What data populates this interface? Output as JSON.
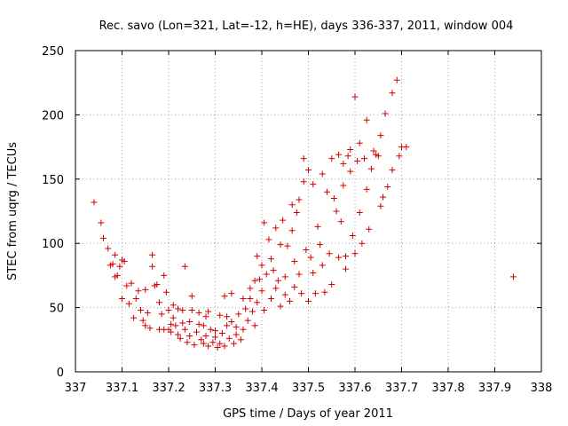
{
  "chart_data": {
    "type": "scatter",
    "title": "Rec. savo (Lon=321, Lat=-12, h=HE), days 336-337, 2011, window 004",
    "xlabel": "GPS time / Days of year 2011",
    "ylabel": "STEC from uqrg / TECUs",
    "xlim": [
      337,
      338
    ],
    "ylim": [
      0,
      250
    ],
    "grid": true,
    "marker": "+",
    "color": "#d00000",
    "x_ticks": [
      "337",
      "337.1",
      "337.2",
      "337.3",
      "337.4",
      "337.5",
      "337.6",
      "337.7",
      "337.8",
      "337.9",
      "338"
    ],
    "y_ticks": [
      "0",
      "50",
      "100",
      "150",
      "200",
      "250"
    ],
    "series": [
      {
        "name": "STEC",
        "points": [
          [
            337.04,
            132
          ],
          [
            337.055,
            116
          ],
          [
            337.06,
            104
          ],
          [
            337.07,
            96
          ],
          [
            337.075,
            83
          ],
          [
            337.08,
            84
          ],
          [
            337.085,
            91
          ],
          [
            337.085,
            74
          ],
          [
            337.09,
            75
          ],
          [
            337.095,
            82
          ],
          [
            337.1,
            87
          ],
          [
            337.105,
            86
          ],
          [
            337.1,
            57
          ],
          [
            337.11,
            67
          ],
          [
            337.115,
            53
          ],
          [
            337.12,
            69
          ],
          [
            337.125,
            42
          ],
          [
            337.13,
            57
          ],
          [
            337.135,
            63
          ],
          [
            337.14,
            48
          ],
          [
            337.145,
            40
          ],
          [
            337.15,
            36
          ],
          [
            337.15,
            64
          ],
          [
            337.155,
            46
          ],
          [
            337.16,
            34
          ],
          [
            337.165,
            91
          ],
          [
            337.165,
            82
          ],
          [
            337.17,
            67
          ],
          [
            337.175,
            68
          ],
          [
            337.18,
            54
          ],
          [
            337.18,
            33
          ],
          [
            337.185,
            45
          ],
          [
            337.19,
            33
          ],
          [
            337.19,
            75
          ],
          [
            337.195,
            62
          ],
          [
            337.2,
            48
          ],
          [
            337.2,
            33
          ],
          [
            337.205,
            37
          ],
          [
            337.205,
            31
          ],
          [
            337.21,
            52
          ],
          [
            337.21,
            42
          ],
          [
            337.215,
            36
          ],
          [
            337.22,
            29
          ],
          [
            337.22,
            49
          ],
          [
            337.225,
            26
          ],
          [
            337.23,
            38
          ],
          [
            337.23,
            48
          ],
          [
            337.235,
            82
          ],
          [
            337.235,
            33
          ],
          [
            337.24,
            23
          ],
          [
            337.245,
            28
          ],
          [
            337.245,
            39
          ],
          [
            337.25,
            48
          ],
          [
            337.25,
            59
          ],
          [
            337.255,
            21
          ],
          [
            337.26,
            31
          ],
          [
            337.265,
            46
          ],
          [
            337.265,
            37
          ],
          [
            337.27,
            25
          ],
          [
            337.275,
            22
          ],
          [
            337.275,
            36
          ],
          [
            337.28,
            28
          ],
          [
            337.28,
            43
          ],
          [
            337.285,
            47
          ],
          [
            337.285,
            20
          ],
          [
            337.29,
            33
          ],
          [
            337.295,
            23
          ],
          [
            337.3,
            27
          ],
          [
            337.3,
            32
          ],
          [
            337.305,
            19
          ],
          [
            337.31,
            22
          ],
          [
            337.31,
            44
          ],
          [
            337.315,
            30
          ],
          [
            337.32,
            59
          ],
          [
            337.32,
            20
          ],
          [
            337.325,
            36
          ],
          [
            337.325,
            43
          ],
          [
            337.33,
            26
          ],
          [
            337.335,
            61
          ],
          [
            337.335,
            39
          ],
          [
            337.34,
            22
          ],
          [
            337.345,
            35
          ],
          [
            337.345,
            29
          ],
          [
            337.35,
            45
          ],
          [
            337.355,
            25
          ],
          [
            337.36,
            57
          ],
          [
            337.36,
            33
          ],
          [
            337.365,
            49
          ],
          [
            337.37,
            40
          ],
          [
            337.375,
            57
          ],
          [
            337.375,
            65
          ],
          [
            337.38,
            47
          ],
          [
            337.385,
            71
          ],
          [
            337.385,
            36
          ],
          [
            337.39,
            90
          ],
          [
            337.39,
            54
          ],
          [
            337.395,
            72
          ],
          [
            337.4,
            63
          ],
          [
            337.4,
            83
          ],
          [
            337.405,
            116
          ],
          [
            337.405,
            48
          ],
          [
            337.41,
            76
          ],
          [
            337.415,
            103
          ],
          [
            337.42,
            57
          ],
          [
            337.42,
            88
          ],
          [
            337.425,
            79
          ],
          [
            337.43,
            112
          ],
          [
            337.43,
            65
          ],
          [
            337.435,
            71
          ],
          [
            337.44,
            99
          ],
          [
            337.44,
            51
          ],
          [
            337.445,
            118
          ],
          [
            337.45,
            74
          ],
          [
            337.45,
            60
          ],
          [
            337.455,
            98
          ],
          [
            337.46,
            55
          ],
          [
            337.465,
            130
          ],
          [
            337.465,
            110
          ],
          [
            337.47,
            86
          ],
          [
            337.47,
            66
          ],
          [
            337.475,
            124
          ],
          [
            337.48,
            134
          ],
          [
            337.48,
            76
          ],
          [
            337.485,
            61
          ],
          [
            337.49,
            166
          ],
          [
            337.49,
            148
          ],
          [
            337.495,
            95
          ],
          [
            337.5,
            55
          ],
          [
            337.5,
            157
          ],
          [
            337.505,
            89
          ],
          [
            337.51,
            77
          ],
          [
            337.51,
            146
          ],
          [
            337.515,
            61
          ],
          [
            337.52,
            113
          ],
          [
            337.525,
            99
          ],
          [
            337.53,
            154
          ],
          [
            337.53,
            83
          ],
          [
            337.535,
            62
          ],
          [
            337.54,
            140
          ],
          [
            337.545,
            92
          ],
          [
            337.55,
            166
          ],
          [
            337.55,
            68
          ],
          [
            337.555,
            135
          ],
          [
            337.56,
            125
          ],
          [
            337.565,
            169
          ],
          [
            337.565,
            89
          ],
          [
            337.57,
            117
          ],
          [
            337.575,
            162
          ],
          [
            337.575,
            145
          ],
          [
            337.58,
            80
          ],
          [
            337.58,
            90
          ],
          [
            337.585,
            168
          ],
          [
            337.59,
            173
          ],
          [
            337.59,
            156
          ],
          [
            337.595,
            106
          ],
          [
            337.6,
            92
          ],
          [
            337.6,
            214
          ],
          [
            337.605,
            164
          ],
          [
            337.61,
            178
          ],
          [
            337.61,
            124
          ],
          [
            337.615,
            100
          ],
          [
            337.62,
            166
          ],
          [
            337.625,
            196
          ],
          [
            337.625,
            142
          ],
          [
            337.63,
            111
          ],
          [
            337.635,
            158
          ],
          [
            337.64,
            172
          ],
          [
            337.645,
            169
          ],
          [
            337.65,
            168
          ],
          [
            337.655,
            184
          ],
          [
            337.655,
            129
          ],
          [
            337.66,
            136
          ],
          [
            337.665,
            201
          ],
          [
            337.67,
            144
          ],
          [
            337.68,
            217
          ],
          [
            337.68,
            157
          ],
          [
            337.69,
            227
          ],
          [
            337.695,
            168
          ],
          [
            337.7,
            175
          ],
          [
            337.71,
            175
          ],
          [
            337.94,
            74
          ]
        ]
      }
    ]
  }
}
